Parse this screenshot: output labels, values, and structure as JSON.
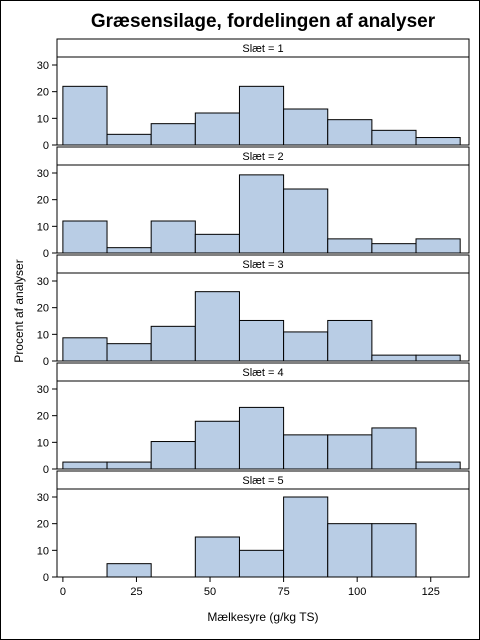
{
  "chart_data": {
    "type": "bar",
    "title": "Græsensilage, fordelingen af analyser",
    "xlabel": "Mælkesyre (g/kg TS)",
    "ylabel": "Procent af analyser",
    "bin_edges": [
      0,
      15,
      30,
      45,
      60,
      75,
      90,
      105,
      120,
      135
    ],
    "xlim": [
      -2,
      138
    ],
    "ylim": [
      0,
      33
    ],
    "xticks": [
      0,
      25,
      50,
      75,
      100,
      125
    ],
    "yticks": [
      0,
      10,
      20,
      30
    ],
    "bar_color": "#b9cde5",
    "panels": [
      {
        "label": "Slæt = 1",
        "values": [
          22,
          4,
          8,
          12,
          22,
          13.5,
          9.5,
          5.5,
          2.8
        ]
      },
      {
        "label": "Slæt = 2",
        "values": [
          12,
          2,
          12,
          7,
          29.3,
          24,
          5.3,
          3.5,
          5.3
        ]
      },
      {
        "label": "Slæt = 3",
        "values": [
          8.7,
          6.5,
          13,
          26,
          15.2,
          10.9,
          15.2,
          2.2,
          2.2
        ]
      },
      {
        "label": "Slæt = 4",
        "values": [
          2.6,
          2.6,
          10.3,
          17.9,
          23.1,
          12.8,
          12.8,
          15.4,
          2.6
        ]
      },
      {
        "label": "Slæt = 5",
        "values": [
          0,
          5,
          0,
          15,
          10,
          30,
          20,
          20,
          0
        ]
      }
    ]
  }
}
